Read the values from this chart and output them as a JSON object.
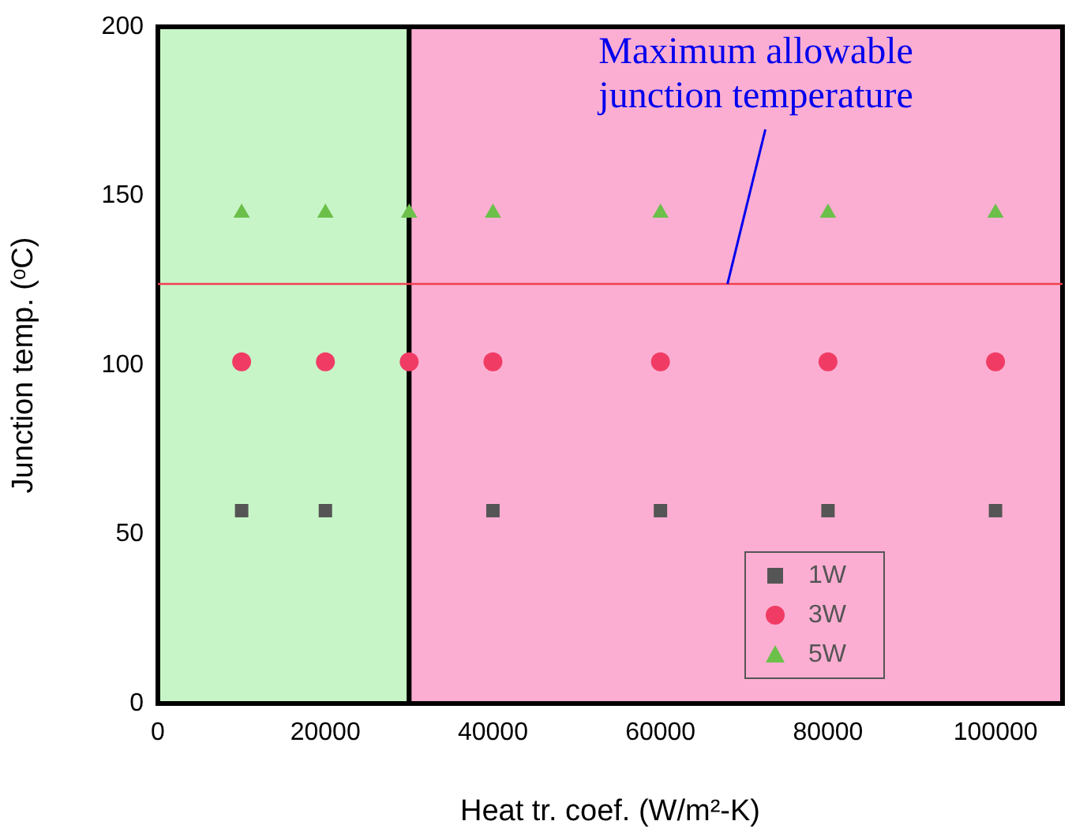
{
  "chart_data": {
    "type": "scatter",
    "xlabel": "Heat tr. coef. (W/m²-K)",
    "ylabel": "Junction temp. (ᵒC)",
    "xlim": [
      0,
      108000
    ],
    "xticks": [
      0,
      20000,
      40000,
      60000,
      80000,
      100000
    ],
    "ylim": [
      0,
      200
    ],
    "yticks": [
      0,
      50,
      100,
      150,
      200
    ],
    "grid": false,
    "legend": "bottom right",
    "series": [
      {
        "name": "1W",
        "color": "#555555",
        "marker": "square",
        "x": [
          10000,
          20000,
          40000,
          60000,
          80000,
          100000
        ],
        "values": [
          57,
          57,
          57,
          57,
          57,
          57
        ]
      },
      {
        "name": "3W",
        "color": "#f03c64",
        "marker": "circle",
        "x": [
          10000,
          20000,
          30000,
          40000,
          60000,
          80000,
          100000
        ],
        "values": [
          101,
          101,
          101,
          101,
          101,
          101,
          101
        ]
      },
      {
        "name": "5W",
        "color": "#6cc04a",
        "marker": "triangle",
        "x": [
          10000,
          20000,
          30000,
          40000,
          60000,
          80000,
          100000
        ],
        "values": [
          145,
          145,
          145,
          145,
          145,
          145,
          145
        ]
      }
    ],
    "bands": [
      {
        "axis": "x",
        "from": 0,
        "to": 30000,
        "color": "#c8f5c8"
      },
      {
        "axis": "x",
        "from": 30000,
        "to": 108000,
        "color": "#fcaed2"
      }
    ],
    "ref_lines": [
      {
        "axis": "y",
        "value": 124,
        "color": "#f04050"
      }
    ],
    "annotations": [
      {
        "text": "Maximum allowable junction temperature",
        "x": 68000,
        "y": 124
      }
    ]
  }
}
